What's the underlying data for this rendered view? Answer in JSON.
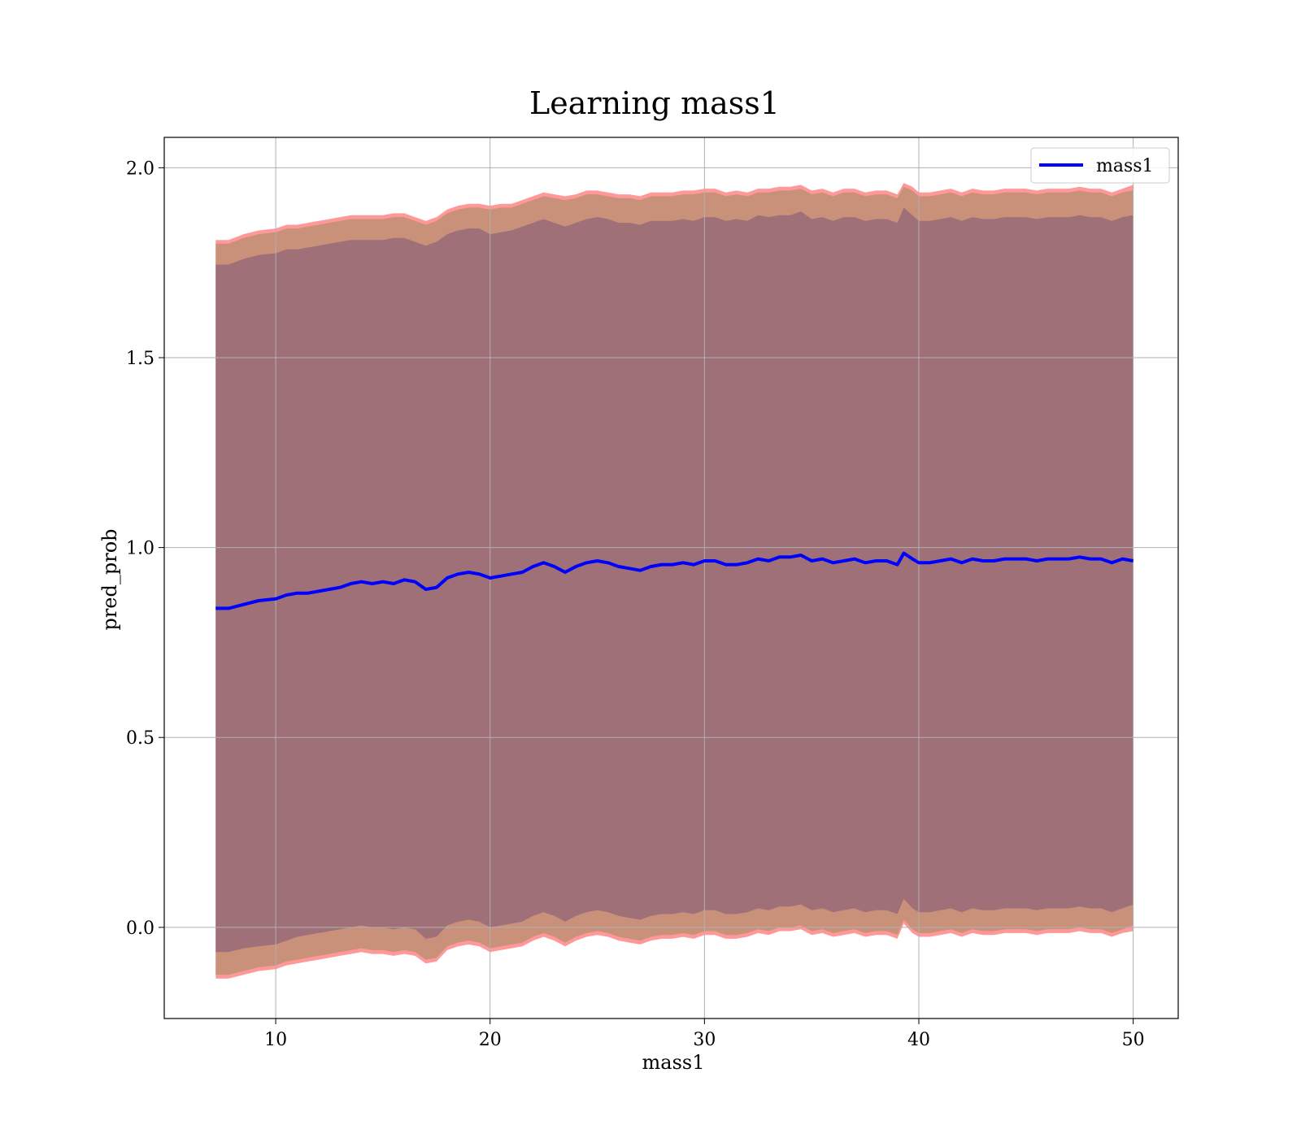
{
  "chart_data": {
    "type": "line",
    "title": "Learning mass1",
    "xlabel": "mass1",
    "ylabel": "pred_prob",
    "xlim": [
      4.8,
      52.1
    ],
    "ylim": [
      -0.24,
      2.08
    ],
    "xticks": [
      10,
      20,
      30,
      40,
      50
    ],
    "xtick_labels": [
      "10",
      "20",
      "30",
      "40",
      "50"
    ],
    "yticks": [
      0.0,
      0.5,
      1.0,
      1.5,
      2.0
    ],
    "ytick_labels": [
      "0.0",
      "0.5",
      "1.0",
      "1.5",
      "2.0"
    ],
    "grid": true,
    "legend": {
      "position": "top-right",
      "entries": [
        "mass1"
      ]
    },
    "colors": {
      "line": "#0000ff",
      "band_outer": "#ff9999",
      "band_middle": "#c9917a",
      "band_inner": "#a07078",
      "grid": "#b0b0b0"
    },
    "series": [
      {
        "name": "mass1",
        "x": [
          7.2,
          7.8,
          8.5,
          9.2,
          10.0,
          10.5,
          11.0,
          11.5,
          12.0,
          12.5,
          13.0,
          13.5,
          14.0,
          14.5,
          15.0,
          15.5,
          16.0,
          16.5,
          17.0,
          17.5,
          18.0,
          18.5,
          19.0,
          19.5,
          20.0,
          20.5,
          21.0,
          21.5,
          22.0,
          22.5,
          23.0,
          23.5,
          24.0,
          24.5,
          25.0,
          25.5,
          26.0,
          26.5,
          27.0,
          27.5,
          28.0,
          28.5,
          29.0,
          29.5,
          30.0,
          30.5,
          31.0,
          31.5,
          32.0,
          32.5,
          33.0,
          33.5,
          34.0,
          34.5,
          35.0,
          35.5,
          36.0,
          36.5,
          37.0,
          37.5,
          38.0,
          38.5,
          39.0,
          39.3,
          39.7,
          40.0,
          40.5,
          41.0,
          41.5,
          42.0,
          42.5,
          43.0,
          43.5,
          44.0,
          44.5,
          45.0,
          45.5,
          46.0,
          46.5,
          47.0,
          47.5,
          48.0,
          48.5,
          49.0,
          49.5,
          50.0
        ],
        "y": [
          0.84,
          0.84,
          0.85,
          0.86,
          0.865,
          0.875,
          0.88,
          0.88,
          0.885,
          0.89,
          0.895,
          0.905,
          0.91,
          0.905,
          0.91,
          0.905,
          0.915,
          0.91,
          0.89,
          0.895,
          0.92,
          0.93,
          0.935,
          0.93,
          0.92,
          0.925,
          0.93,
          0.935,
          0.95,
          0.96,
          0.95,
          0.935,
          0.95,
          0.96,
          0.965,
          0.96,
          0.95,
          0.945,
          0.94,
          0.95,
          0.955,
          0.955,
          0.96,
          0.955,
          0.965,
          0.965,
          0.955,
          0.955,
          0.96,
          0.97,
          0.965,
          0.975,
          0.975,
          0.98,
          0.965,
          0.97,
          0.96,
          0.965,
          0.97,
          0.96,
          0.965,
          0.965,
          0.955,
          0.985,
          0.97,
          0.96,
          0.96,
          0.965,
          0.97,
          0.96,
          0.97,
          0.965,
          0.965,
          0.97,
          0.97,
          0.97,
          0.965,
          0.97,
          0.97,
          0.97,
          0.975,
          0.97,
          0.97,
          0.96,
          0.97,
          0.965
        ],
        "upper_outer": [
          1.81,
          1.81,
          1.825,
          1.835,
          1.84,
          1.85,
          1.85,
          1.855,
          1.86,
          1.865,
          1.87,
          1.875,
          1.875,
          1.875,
          1.875,
          1.88,
          1.88,
          1.87,
          1.86,
          1.87,
          1.89,
          1.9,
          1.905,
          1.905,
          1.9,
          1.905,
          1.905,
          1.915,
          1.925,
          1.935,
          1.93,
          1.925,
          1.93,
          1.94,
          1.94,
          1.935,
          1.93,
          1.93,
          1.925,
          1.935,
          1.935,
          1.935,
          1.94,
          1.94,
          1.945,
          1.945,
          1.935,
          1.94,
          1.935,
          1.945,
          1.945,
          1.95,
          1.95,
          1.955,
          1.94,
          1.945,
          1.935,
          1.945,
          1.945,
          1.935,
          1.94,
          1.94,
          1.93,
          1.96,
          1.95,
          1.935,
          1.935,
          1.94,
          1.945,
          1.935,
          1.945,
          1.94,
          1.94,
          1.945,
          1.945,
          1.945,
          1.94,
          1.945,
          1.945,
          1.945,
          1.95,
          1.945,
          1.945,
          1.935,
          1.945,
          1.955
        ],
        "upper_middle": [
          1.8,
          1.8,
          1.815,
          1.825,
          1.83,
          1.84,
          1.84,
          1.845,
          1.85,
          1.855,
          1.86,
          1.865,
          1.865,
          1.865,
          1.865,
          1.87,
          1.87,
          1.86,
          1.85,
          1.86,
          1.88,
          1.89,
          1.895,
          1.895,
          1.89,
          1.895,
          1.895,
          1.905,
          1.915,
          1.925,
          1.92,
          1.915,
          1.92,
          1.93,
          1.93,
          1.925,
          1.92,
          1.92,
          1.915,
          1.925,
          1.925,
          1.925,
          1.93,
          1.93,
          1.935,
          1.935,
          1.925,
          1.93,
          1.925,
          1.935,
          1.935,
          1.94,
          1.94,
          1.945,
          1.93,
          1.935,
          1.925,
          1.935,
          1.935,
          1.925,
          1.93,
          1.93,
          1.92,
          1.95,
          1.94,
          1.925,
          1.925,
          1.93,
          1.935,
          1.925,
          1.935,
          1.93,
          1.93,
          1.935,
          1.935,
          1.935,
          1.93,
          1.935,
          1.935,
          1.935,
          1.94,
          1.935,
          1.935,
          1.925,
          1.935,
          1.94
        ],
        "upper_inner": [
          1.745,
          1.745,
          1.76,
          1.77,
          1.775,
          1.785,
          1.785,
          1.79,
          1.795,
          1.8,
          1.805,
          1.81,
          1.81,
          1.81,
          1.81,
          1.815,
          1.815,
          1.805,
          1.795,
          1.805,
          1.825,
          1.835,
          1.84,
          1.84,
          1.825,
          1.83,
          1.835,
          1.845,
          1.855,
          1.865,
          1.855,
          1.845,
          1.855,
          1.865,
          1.87,
          1.865,
          1.855,
          1.855,
          1.85,
          1.86,
          1.86,
          1.86,
          1.865,
          1.86,
          1.87,
          1.87,
          1.86,
          1.865,
          1.86,
          1.875,
          1.87,
          1.875,
          1.875,
          1.885,
          1.865,
          1.87,
          1.86,
          1.87,
          1.87,
          1.86,
          1.865,
          1.865,
          1.855,
          1.895,
          1.875,
          1.86,
          1.86,
          1.865,
          1.87,
          1.86,
          1.87,
          1.865,
          1.865,
          1.87,
          1.87,
          1.87,
          1.865,
          1.87,
          1.87,
          1.87,
          1.875,
          1.87,
          1.87,
          1.86,
          1.87,
          1.875
        ],
        "lower_inner": [
          -0.065,
          -0.065,
          -0.055,
          -0.05,
          -0.045,
          -0.035,
          -0.025,
          -0.02,
          -0.015,
          -0.01,
          -0.005,
          0.0,
          0.005,
          0.0,
          0.0,
          -0.005,
          0.0,
          -0.005,
          -0.03,
          -0.025,
          0.005,
          0.015,
          0.02,
          0.015,
          0.0,
          0.005,
          0.01,
          0.015,
          0.03,
          0.04,
          0.03,
          0.015,
          0.03,
          0.04,
          0.045,
          0.04,
          0.03,
          0.025,
          0.02,
          0.03,
          0.035,
          0.035,
          0.04,
          0.035,
          0.045,
          0.045,
          0.035,
          0.035,
          0.04,
          0.05,
          0.045,
          0.055,
          0.055,
          0.06,
          0.045,
          0.05,
          0.04,
          0.045,
          0.05,
          0.04,
          0.045,
          0.045,
          0.035,
          0.075,
          0.05,
          0.04,
          0.04,
          0.045,
          0.05,
          0.04,
          0.05,
          0.045,
          0.045,
          0.05,
          0.05,
          0.05,
          0.045,
          0.05,
          0.05,
          0.05,
          0.055,
          0.05,
          0.05,
          0.04,
          0.05,
          0.06
        ],
        "lower_middle": [
          -0.125,
          -0.125,
          -0.115,
          -0.105,
          -0.1,
          -0.09,
          -0.085,
          -0.08,
          -0.075,
          -0.07,
          -0.065,
          -0.06,
          -0.055,
          -0.06,
          -0.06,
          -0.065,
          -0.06,
          -0.065,
          -0.085,
          -0.08,
          -0.05,
          -0.04,
          -0.035,
          -0.04,
          -0.055,
          -0.05,
          -0.045,
          -0.04,
          -0.025,
          -0.015,
          -0.025,
          -0.04,
          -0.025,
          -0.015,
          -0.01,
          -0.015,
          -0.025,
          -0.03,
          -0.035,
          -0.025,
          -0.02,
          -0.02,
          -0.015,
          -0.02,
          -0.01,
          -0.01,
          -0.02,
          -0.02,
          -0.015,
          -0.005,
          -0.01,
          0.0,
          0.0,
          0.005,
          -0.01,
          -0.005,
          -0.015,
          -0.01,
          -0.005,
          -0.015,
          -0.01,
          -0.01,
          -0.02,
          0.02,
          -0.005,
          -0.015,
          -0.015,
          -0.01,
          -0.005,
          -0.015,
          -0.005,
          -0.01,
          -0.01,
          -0.005,
          -0.005,
          -0.005,
          -0.01,
          -0.005,
          -0.005,
          -0.005,
          0.0,
          -0.005,
          -0.005,
          -0.015,
          -0.005,
          0.005
        ],
        "lower_outer": [
          -0.135,
          -0.135,
          -0.125,
          -0.115,
          -0.11,
          -0.1,
          -0.095,
          -0.09,
          -0.085,
          -0.08,
          -0.075,
          -0.07,
          -0.065,
          -0.07,
          -0.07,
          -0.075,
          -0.07,
          -0.075,
          -0.095,
          -0.09,
          -0.06,
          -0.05,
          -0.045,
          -0.05,
          -0.065,
          -0.06,
          -0.055,
          -0.05,
          -0.035,
          -0.025,
          -0.035,
          -0.05,
          -0.035,
          -0.025,
          -0.02,
          -0.025,
          -0.035,
          -0.04,
          -0.045,
          -0.035,
          -0.03,
          -0.03,
          -0.025,
          -0.03,
          -0.02,
          -0.02,
          -0.03,
          -0.03,
          -0.025,
          -0.015,
          -0.02,
          -0.01,
          -0.01,
          -0.005,
          -0.02,
          -0.015,
          -0.025,
          -0.02,
          -0.015,
          -0.025,
          -0.02,
          -0.02,
          -0.03,
          0.01,
          -0.015,
          -0.025,
          -0.025,
          -0.02,
          -0.015,
          -0.025,
          -0.015,
          -0.02,
          -0.02,
          -0.015,
          -0.015,
          -0.015,
          -0.02,
          -0.015,
          -0.015,
          -0.015,
          -0.01,
          -0.015,
          -0.015,
          -0.025,
          -0.015,
          -0.01
        ]
      }
    ]
  }
}
